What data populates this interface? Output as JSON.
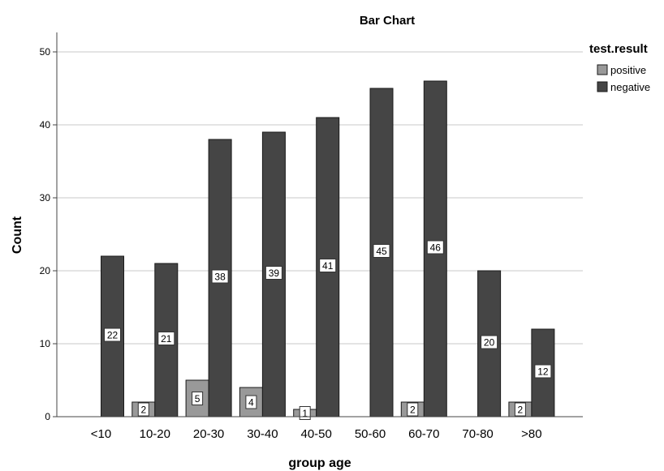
{
  "chart_data": {
    "type": "bar",
    "title": "Bar Chart",
    "xlabel": "group age",
    "ylabel": "Count",
    "categories": [
      "<10",
      "10-20",
      "20-30",
      "30-40",
      "40-50",
      "50-60",
      "60-70",
      "70-80",
      ">80"
    ],
    "yticks": [
      "0",
      "10",
      "20",
      "30",
      "40",
      "50"
    ],
    "ylim": [
      0,
      52
    ],
    "grid": true,
    "legend": {
      "title": "test.result",
      "position": "top-right"
    },
    "series": [
      {
        "name": "positive",
        "color": "#999999",
        "values": [
          null,
          2,
          5,
          4,
          1,
          null,
          2,
          null,
          2
        ]
      },
      {
        "name": "negative",
        "color": "#454545",
        "values": [
          22,
          21,
          38,
          39,
          41,
          45,
          46,
          20,
          12
        ]
      }
    ]
  }
}
